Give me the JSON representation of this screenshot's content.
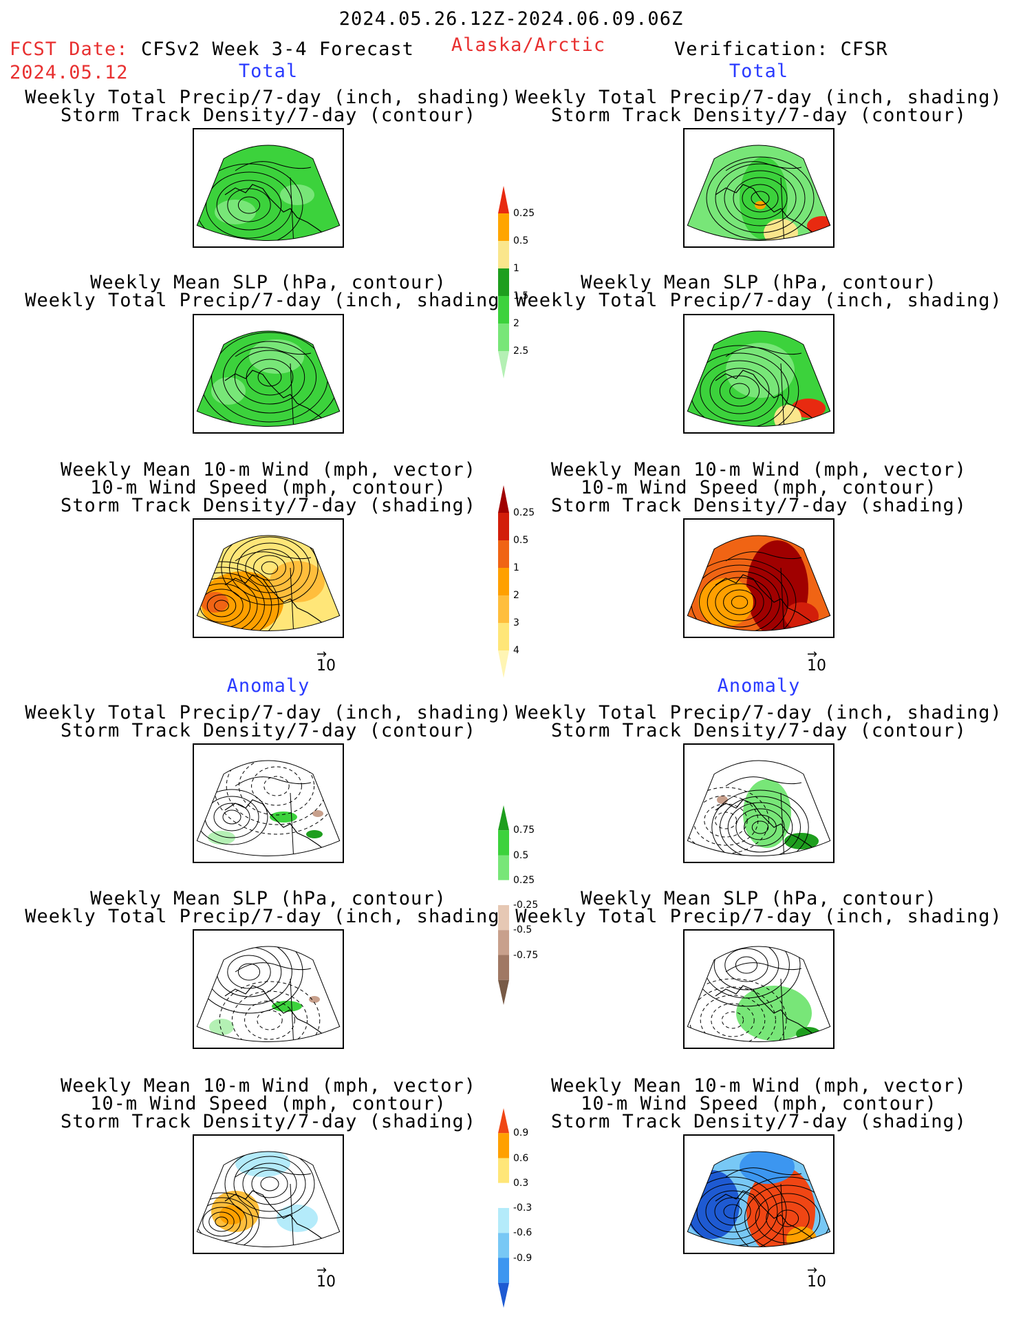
{
  "header": {
    "period": "2024.05.26.12Z-2024.06.09.06Z",
    "fcst_label": "FCST Date:",
    "fcst_date": "2024.05.12",
    "model": "CFSv2 Week 3-4 Forecast",
    "region": "Alaska/Arctic",
    "verification": "Verification: CFSR"
  },
  "sections": {
    "total": "Total",
    "anomaly": "Anomaly"
  },
  "panel_titles": {
    "precip_storm": [
      "Weekly Total Precip/7-day (inch, shading)",
      "Storm Track Density/7-day (contour)"
    ],
    "slp_precip": [
      "Weekly Mean SLP (hPa, contour)",
      "Weekly Total Precip/7-day (inch, shading)"
    ],
    "wind_storm": [
      "Weekly Mean 10-m Wind (mph, vector)",
      "10-m Wind Speed (mph, contour)",
      "Storm Track Density/7-day (shading)"
    ]
  },
  "vector_scale": "10",
  "chart_data": [
    {
      "type": "heatmap",
      "name": "precip_total_colorbar",
      "levels": [
        "0.25",
        "0.5",
        "1",
        "1.5",
        "2",
        "2.5"
      ],
      "colors": [
        "#b4f0b4",
        "#78e678",
        "#3cd23c",
        "#1e9e1e",
        "#fae68c",
        "#ffa500",
        "#e82a10"
      ]
    },
    {
      "type": "heatmap",
      "name": "storm_total_colorbar",
      "levels": [
        "0.25",
        "0.5",
        "1",
        "2",
        "3",
        "4"
      ],
      "colors": [
        "#fff5b4",
        "#ffe678",
        "#ffbe3c",
        "#ffa000",
        "#f06414",
        "#d21e0a",
        "#a00000"
      ]
    },
    {
      "type": "heatmap",
      "name": "precip_anom_colorbar",
      "levels": [
        "0.75",
        "0.5",
        "0.25",
        "-0.25",
        "-0.5",
        "-0.75"
      ],
      "colors": [
        "#1e9e1e",
        "#3cd23c",
        "#78e678",
        "#ffffff",
        "#e6c8b4",
        "#c8a08c",
        "#a07864",
        "#785a46"
      ]
    },
    {
      "type": "heatmap",
      "name": "storm_anom_colorbar",
      "levels": [
        "0.9",
        "0.6",
        "0.3",
        "-0.3",
        "-0.6",
        "-0.9"
      ],
      "colors": [
        "#f04614",
        "#ffa000",
        "#ffe678",
        "#ffffff",
        "#b4ebfa",
        "#78c8f5",
        "#3c96f0",
        "#1e5ad2"
      ]
    }
  ],
  "colors": {
    "header_red": "#e83030",
    "section_blue": "#2a3bff"
  }
}
